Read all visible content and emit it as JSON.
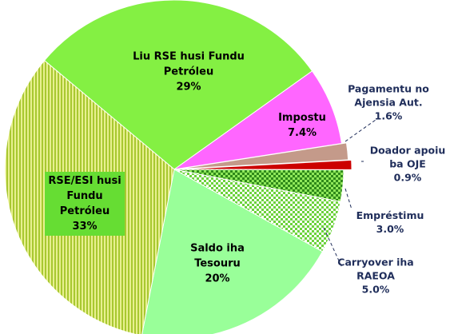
{
  "chart_data": {
    "type": "pie",
    "categories": [
      "Liu RSE husi Fundu Petróleu",
      "Impostu",
      "Pagamentu no Ajensia Aut.",
      "Doador apoiu ba OJE",
      "Empréstimu",
      "Carryover iha RAEOA",
      "Saldo iha Tesouru",
      "RSE/ESI husi Fundu Petróleu"
    ],
    "values": [
      29,
      7.4,
      1.6,
      0.9,
      3.0,
      5.0,
      20,
      33
    ],
    "value_labels": [
      "29%",
      "7.4%",
      "1.6%",
      "0.9%",
      "3.0%",
      "5.0%",
      "20%",
      "33%"
    ],
    "colors": [
      "#84f043",
      "#ff66ff",
      "#c49a8a",
      "#cc0000",
      "#5cc22e",
      "#a8f07a",
      "#99ff99",
      "#c8dc4a"
    ]
  }
}
